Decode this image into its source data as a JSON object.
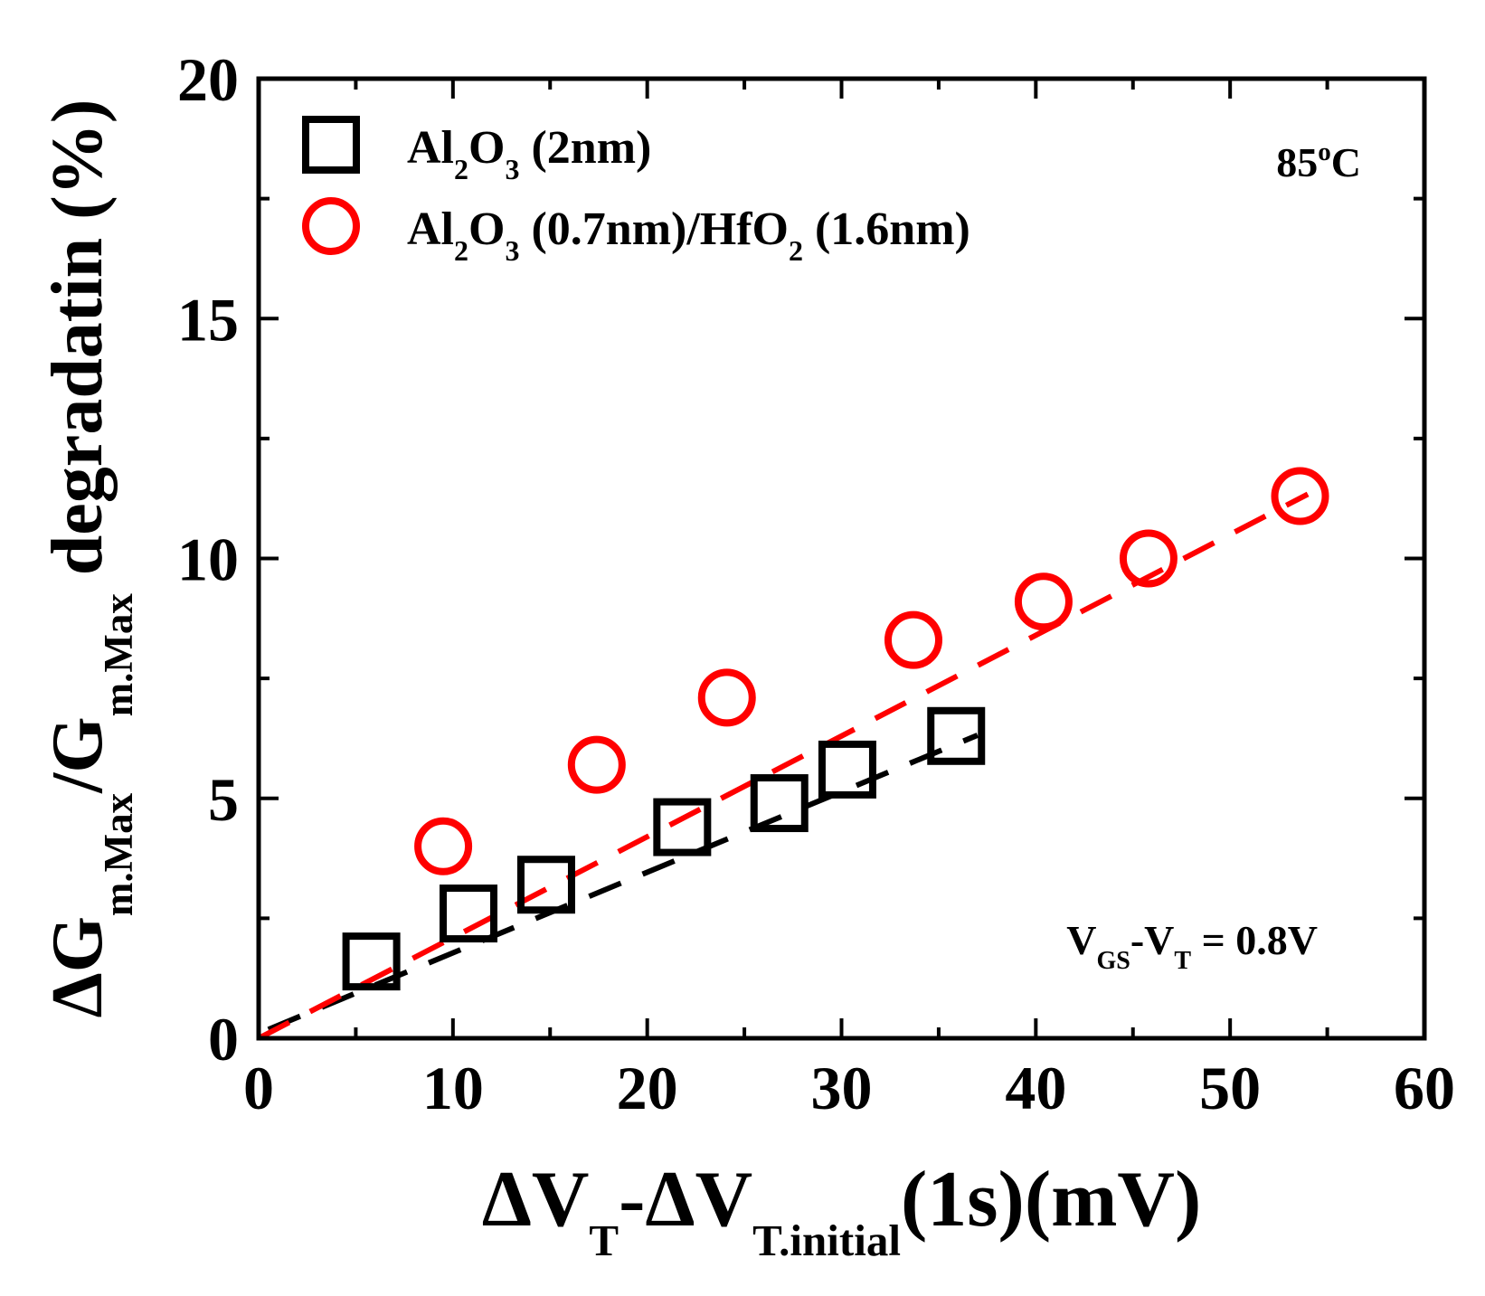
{
  "chart_data": {
    "type": "scatter",
    "xlabel": {
      "parts": [
        {
          "text": "ΔV",
          "sub": "T"
        },
        {
          "text": "-ΔV",
          "sub": "T.initial"
        },
        {
          "text": "(1s)(mV)"
        }
      ]
    },
    "ylabel": {
      "parts": [
        {
          "text": "ΔG",
          "sub": "m.Max"
        },
        {
          "text": "/G",
          "sub": "m.Max"
        },
        {
          "text": " degradatin (%)"
        }
      ]
    },
    "xlim": [
      0,
      60
    ],
    "ylim": [
      0,
      20
    ],
    "xticks": [
      0,
      10,
      20,
      30,
      40,
      50,
      60
    ],
    "yticks": [
      0,
      5,
      10,
      15,
      20
    ],
    "xminor": [
      5,
      15,
      25,
      35,
      45,
      55
    ],
    "yminor": [
      2.5,
      7.5,
      12.5,
      17.5
    ],
    "legend_position": "top-left",
    "series": [
      {
        "name": "Al2O3 (2nm)",
        "label_parts": [
          {
            "text": "Al",
            "sub": "2"
          },
          {
            "text": "O",
            "sub": "3"
          },
          {
            "text": " (2nm)"
          }
        ],
        "marker": "square",
        "color": "#000000",
        "x": [
          5.8,
          10.8,
          14.8,
          21.8,
          26.8,
          30.3,
          35.9
        ],
        "y": [
          1.6,
          2.6,
          3.2,
          4.4,
          4.9,
          5.6,
          6.3
        ],
        "fit": {
          "slope": 0.168,
          "intercept": 0.1,
          "x_range": [
            0.5,
            37
          ]
        }
      },
      {
        "name": "Al2O3 (0.7nm)/HfO2 (1.6nm)",
        "label_parts": [
          {
            "text": "Al",
            "sub": "2"
          },
          {
            "text": "O",
            "sub": "3"
          },
          {
            "text": " (0.7nm)/HfO"
          },
          {
            "text": "",
            "sub": "2"
          },
          {
            "text": " (1.6nm)"
          }
        ],
        "marker": "circle",
        "color": "#ff0000",
        "x": [
          9.5,
          17.4,
          24.1,
          33.7,
          40.4,
          45.8,
          53.6
        ],
        "y": [
          4.0,
          5.7,
          7.1,
          8.3,
          9.1,
          10.0,
          11.3
        ],
        "fit": {
          "slope": 0.21,
          "intercept": 0.0,
          "x_range": [
            0,
            54
          ]
        }
      }
    ],
    "annotations": {
      "temperature": {
        "text": "85",
        "sup": "o",
        "after": "C"
      },
      "bias": {
        "parts": [
          {
            "text": "V",
            "sub": "GS"
          },
          {
            "text": "-V",
            "sub": "T"
          },
          {
            "text": " = 0.8V"
          }
        ]
      }
    }
  }
}
